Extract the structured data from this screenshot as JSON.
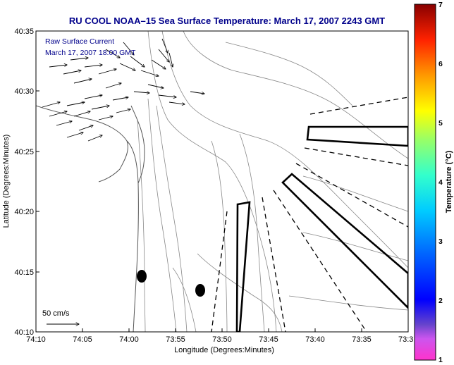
{
  "title": "RU COOL  NOAA–15  Sea Surface Temperature:  March 17, 2007 2243 GMT",
  "xlabel": "Longitude (Degrees:Minutes)",
  "ylabel": "Latitude (Degrees:Minutes)",
  "x_ticks": [
    "74:10",
    "74:05",
    "74:00",
    "73:55",
    "73:50",
    "73:45",
    "73:40",
    "73:35",
    "73:3"
  ],
  "y_ticks": [
    "40:35",
    "40:30",
    "40:25",
    "40:20",
    "40:15",
    "40:10"
  ],
  "inset": {
    "line1": "Raw Surface Current",
    "line2": "March 17, 2007 18:00 GMT"
  },
  "scale_label": "50 cm/s",
  "colorbar": {
    "label": "Temperature (°C)",
    "ticks": [
      "7",
      "6",
      "5",
      "4",
      "3",
      "2",
      "1"
    ],
    "range": [
      1,
      7
    ]
  },
  "colors": {
    "title": "#00008b",
    "frame": "#000000",
    "contour": "#888888",
    "coast": "#555555"
  }
}
